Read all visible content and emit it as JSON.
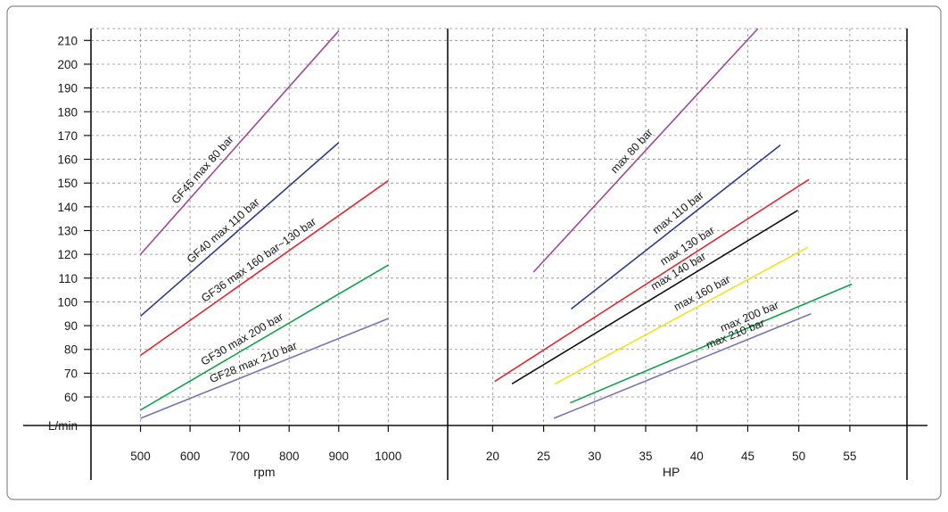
{
  "chart_data": [
    {
      "type": "line",
      "xlabel": "rpm",
      "ylabel": "L/min",
      "x_ticks": [
        500,
        600,
        700,
        800,
        900,
        1000
      ],
      "y_ticks": [
        60,
        70,
        80,
        90,
        100,
        110,
        120,
        130,
        140,
        150,
        160,
        170,
        180,
        190,
        200,
        210
      ],
      "xlim": [
        400,
        1120
      ],
      "ylim": [
        48,
        215
      ],
      "grid": true,
      "series": [
        {
          "name": "GF45 max 80 bar",
          "color": "#a0479a",
          "x": [
            500,
            900
          ],
          "y": [
            120,
            214
          ]
        },
        {
          "name": "GF40 max 110 bar",
          "color": "#2f3a8f",
          "x": [
            500,
            900
          ],
          "y": [
            94,
            167
          ]
        },
        {
          "name": "GF36 max 160 bar~130 bar",
          "color": "#e0262d",
          "x": [
            500,
            1000
          ],
          "y": [
            77.5,
            151
          ]
        },
        {
          "name": "GF30 max 200 bar",
          "color": "#12a14b",
          "x": [
            500,
            1000
          ],
          "y": [
            54.5,
            115.5
          ]
        },
        {
          "name": "GF28 max 210 bar",
          "color": "#7b72b4",
          "x": [
            500,
            1000
          ],
          "y": [
            51,
            93
          ]
        }
      ]
    },
    {
      "type": "line",
      "xlabel": "HP",
      "ylabel": "",
      "x_ticks": [
        20,
        25,
        30,
        35,
        40,
        45,
        50,
        55
      ],
      "xlim": [
        15.6,
        60.6
      ],
      "ylim": [
        48,
        215
      ],
      "grid": true,
      "series": [
        {
          "name": "max 80 bar",
          "color": "#a0479a",
          "x": [
            24,
            46
          ],
          "y": [
            112.5,
            215
          ]
        },
        {
          "name": "max 110 bar",
          "color": "#2f3a8f",
          "x": [
            27.7,
            48.2
          ],
          "y": [
            97,
            166
          ]
        },
        {
          "name": "max 130 bar",
          "color": "#e0262d",
          "x": [
            20.2,
            51
          ],
          "y": [
            66.5,
            151.5
          ]
        },
        {
          "name": "max 140 bar",
          "color": "#111111",
          "x": [
            21.9,
            49.9
          ],
          "y": [
            65.5,
            138.5
          ]
        },
        {
          "name": "max 160 bar",
          "color": "#f2e21f",
          "x": [
            26.1,
            50.9
          ],
          "y": [
            65.5,
            123
          ]
        },
        {
          "name": "max 200 bar",
          "color": "#12a14b",
          "x": [
            27.6,
            55.2
          ],
          "y": [
            57.5,
            107.5
          ]
        },
        {
          "name": "max 210 bar",
          "color": "#7b72b4",
          "x": [
            26,
            51.2
          ],
          "y": [
            51,
            95
          ]
        }
      ]
    }
  ]
}
